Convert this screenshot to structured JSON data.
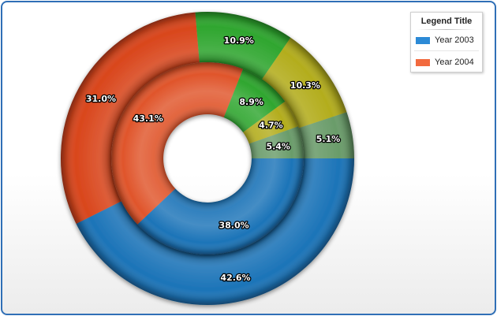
{
  "chart_data": {
    "type": "pie",
    "variant": "multi-ring donut",
    "series": [
      {
        "name": "Year 2003",
        "ring": "outer",
        "values": [
          42.6,
          31.0,
          10.9,
          10.3,
          5.1
        ],
        "labels": [
          "42.6%",
          "31.0%",
          "10.9%",
          "10.3%",
          "5.1%"
        ],
        "colors": [
          "#1c74b8",
          "#d9461c",
          "#2fa62f",
          "#b3ad1d",
          "#6a9c6a"
        ]
      },
      {
        "name": "Year 2004",
        "ring": "inner",
        "values": [
          38.0,
          43.1,
          8.9,
          4.7,
          5.4
        ],
        "labels": [
          "38.0%",
          "43.1%",
          "8.9%",
          "4.7%",
          "5.4%"
        ],
        "colors": [
          "#1c74b8",
          "#e0552b",
          "#2fa62f",
          "#b3ad1d",
          "#6a9c6a"
        ]
      }
    ],
    "legend": {
      "title": "Legend Title",
      "position": "top-right",
      "items": [
        {
          "label": "Year 2003",
          "color": "#2c8ad6"
        },
        {
          "label": "Year 2004",
          "color": "#f26a3f"
        }
      ]
    }
  }
}
